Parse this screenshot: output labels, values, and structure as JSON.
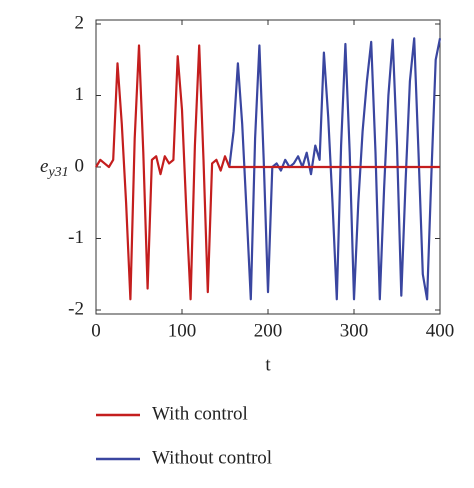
{
  "chart_data": {
    "type": "line",
    "x_label": "t",
    "y_label": "e",
    "y_label_subscript": "y31",
    "x": [
      0,
      5,
      10,
      15,
      20,
      25,
      30,
      35,
      40,
      45,
      50,
      55,
      60,
      65,
      70,
      75,
      80,
      85,
      90,
      95,
      100,
      105,
      110,
      115,
      120,
      125,
      130,
      135,
      140,
      145,
      150,
      155,
      160,
      165,
      170,
      175,
      180,
      185,
      190,
      195,
      200,
      205,
      210,
      215,
      220,
      225,
      230,
      235,
      240,
      245,
      250,
      255,
      260,
      265,
      270,
      275,
      280,
      285,
      290,
      295,
      300,
      305,
      310,
      315,
      320,
      325,
      330,
      335,
      340,
      345,
      350,
      355,
      360,
      365,
      370,
      375,
      380,
      385,
      390,
      395,
      400
    ],
    "series": [
      {
        "name": "Without control",
        "color": "#3a46a0",
        "values": [
          null,
          null,
          null,
          null,
          null,
          null,
          null,
          null,
          null,
          null,
          null,
          null,
          null,
          null,
          null,
          null,
          null,
          null,
          null,
          null,
          null,
          null,
          null,
          null,
          null,
          null,
          null,
          null,
          null,
          null,
          null,
          0,
          0.5,
          1.45,
          0.6,
          -0.6,
          -1.85,
          0.4,
          1.7,
          0.1,
          -1.75,
          0,
          0.05,
          -0.05,
          0.1,
          0,
          0.05,
          0.15,
          0,
          0.2,
          -0.1,
          0.3,
          0.1,
          1.6,
          0.7,
          -0.5,
          -1.85,
          0.3,
          1.72,
          0.2,
          -1.85,
          -0.5,
          0.5,
          1.2,
          1.75,
          0.2,
          -1.85,
          -0.3,
          1.0,
          1.78,
          0.3,
          -1.8,
          -0.2,
          1.2,
          1.8,
          0.2,
          -1.5,
          -1.85,
          -0.1,
          1.5,
          1.8
        ]
      },
      {
        "name": "With control",
        "color": "#c41e1e",
        "values": [
          0,
          0.1,
          0.05,
          0,
          0.1,
          1.45,
          0.6,
          -0.5,
          -1.85,
          0.4,
          1.7,
          0.2,
          -1.7,
          0.1,
          0.15,
          -0.1,
          0.15,
          0.05,
          0.1,
          1.55,
          0.8,
          -0.6,
          -1.85,
          0.3,
          1.7,
          0.1,
          -1.75,
          0.05,
          0.1,
          -0.05,
          0.15,
          0,
          0,
          0,
          0,
          0,
          0,
          0,
          0,
          0,
          0,
          0,
          0,
          0,
          0,
          0,
          0,
          0,
          0,
          0,
          0,
          0,
          0,
          0,
          0,
          0,
          0,
          0,
          0,
          0,
          0,
          0,
          0,
          0,
          0,
          0,
          0,
          0,
          0,
          0,
          0,
          0,
          0,
          0,
          0,
          0,
          0,
          0,
          0,
          0,
          0
        ]
      }
    ],
    "xlim": [
      0,
      400
    ],
    "xticks": [
      0,
      100,
      200,
      300,
      400
    ],
    "ylim": [
      -2,
      2
    ],
    "yticks": [
      -2,
      -1,
      0,
      1,
      2
    ]
  }
}
